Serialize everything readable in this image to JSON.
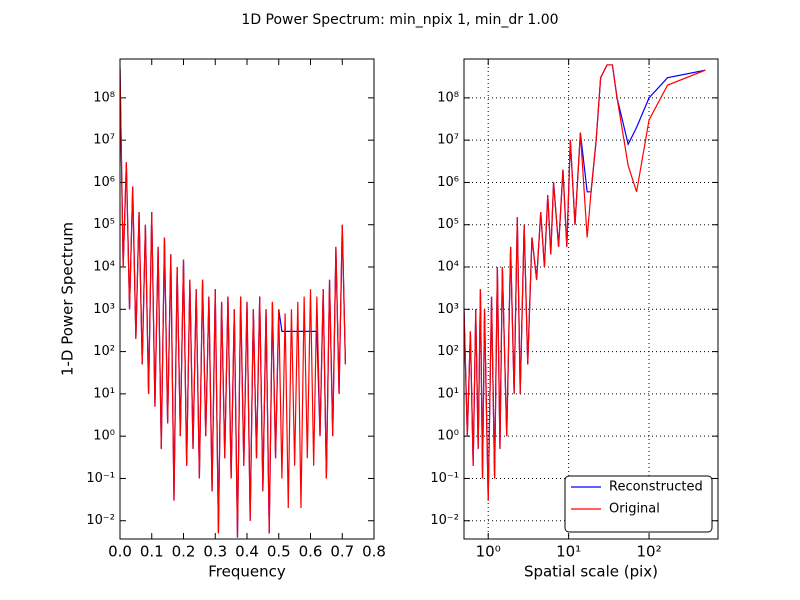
{
  "title": "1D Power Spectrum: min_npix 1, min_dr 1.00",
  "chart_data": [
    {
      "type": "line",
      "xlabel": "Frequency",
      "ylabel": "1-D Power Spectrum",
      "xscale": "linear",
      "yscale": "log",
      "grid": false,
      "xlim": [
        0,
        0.8
      ],
      "ylim": [
        0.0037,
        830000000
      ],
      "xticks": [
        {
          "value": 0,
          "label": "0.0"
        },
        0.1,
        0.2,
        0.3,
        0.4,
        0.5,
        0.6,
        0.7,
        0.8
      ],
      "yticks": [
        {
          "value": 0.01,
          "label": "10⁻²"
        },
        {
          "value": 0.1,
          "label": "10⁻¹"
        },
        {
          "value": 1,
          "label": "10⁰"
        },
        {
          "value": 10,
          "label": "10¹"
        },
        {
          "value": 100,
          "label": "10²"
        },
        {
          "value": 1000,
          "label": "10³"
        },
        {
          "value": 10000,
          "label": "10⁴"
        },
        {
          "value": 100000,
          "label": "10⁵"
        },
        {
          "value": 1000000,
          "label": "10⁶"
        },
        {
          "value": 10000000,
          "label": "10⁷"
        },
        {
          "value": 100000000,
          "label": "10⁸"
        }
      ],
      "x": [
        0.0,
        0.01,
        0.02,
        0.03,
        0.04,
        0.05,
        0.06,
        0.07,
        0.08,
        0.09,
        0.1,
        0.11,
        0.12,
        0.13,
        0.14,
        0.15,
        0.16,
        0.17,
        0.18,
        0.19,
        0.2,
        0.21,
        0.22,
        0.23,
        0.24,
        0.25,
        0.26,
        0.27,
        0.28,
        0.29,
        0.3,
        0.31,
        0.32,
        0.33,
        0.34,
        0.35,
        0.36,
        0.37,
        0.38,
        0.39,
        0.4,
        0.41,
        0.42,
        0.43,
        0.44,
        0.45,
        0.46,
        0.47,
        0.48,
        0.49,
        0.5,
        0.51,
        0.52,
        0.53,
        0.54,
        0.55,
        0.56,
        0.57,
        0.58,
        0.59,
        0.6,
        0.61,
        0.62,
        0.63,
        0.64,
        0.65,
        0.66,
        0.67,
        0.68,
        0.69,
        0.7,
        0.71
      ],
      "series": [
        {
          "name": "Reconstructed",
          "color": "#0000ff",
          "values": [
            500000000.0,
            10000.0,
            3000000.0,
            1000.0,
            800000.0,
            200,
            200000.0,
            50,
            100000.0,
            10,
            200000.0,
            5,
            30000.0,
            0.5,
            50000.0,
            2,
            20000.0,
            0.03,
            10000.0,
            1,
            15000.0,
            0.2,
            5000.0,
            0.5,
            3000.0,
            0.1,
            5000.0,
            1,
            2000.0,
            0.05,
            3000.0,
            0.005,
            1500.0,
            0.3,
            2000.0,
            0.1,
            1000.0,
            0.004,
            2000.0,
            0.2,
            1500.0,
            0.01,
            1000.0,
            0.3,
            2000.0,
            0.05,
            1000.0,
            0.005,
            1500.0,
            0.3,
            1000.0,
            300,
            300,
            300,
            300,
            300,
            300,
            300,
            300,
            300,
            300,
            300,
            300,
            1,
            3000.0,
            0.1,
            5000.0,
            1,
            30000.0,
            10,
            100000.0,
            50
          ]
        },
        {
          "name": "Original",
          "color": "#ff0000",
          "values": [
            500000000.0,
            10000.0,
            3000000.0,
            1000.0,
            800000.0,
            200,
            200000.0,
            50,
            100000.0,
            10,
            200000.0,
            5,
            30000.0,
            0.5,
            50000.0,
            2,
            20000.0,
            0.03,
            10000.0,
            1,
            15000.0,
            0.2,
            5000.0,
            0.5,
            3000.0,
            0.1,
            5000.0,
            1,
            2000.0,
            0.05,
            3000.0,
            0.005,
            1500.0,
            0.3,
            2000.0,
            0.1,
            1000.0,
            0.004,
            2000.0,
            0.2,
            1500.0,
            0.01,
            1000.0,
            0.3,
            2000.0,
            0.05,
            1000.0,
            0.005,
            1500.0,
            0.3,
            1000.0,
            0.1,
            800,
            0.02,
            1000.0,
            0.2,
            1500.0,
            0.02,
            2000.0,
            0.3,
            3000.0,
            0.2,
            2000.0,
            1,
            3000.0,
            0.1,
            5000.0,
            1,
            30000.0,
            10,
            100000.0,
            50
          ]
        }
      ]
    },
    {
      "type": "line",
      "xlabel": "Spatial scale (pix)",
      "xscale": "log",
      "yscale": "log",
      "grid": true,
      "legend": "lower right",
      "xlim": [
        0.5,
        720
      ],
      "ylim": [
        0.0037,
        830000000
      ],
      "xticks": [
        {
          "value": 1,
          "label": "10⁰"
        },
        {
          "value": 10,
          "label": "10¹"
        },
        {
          "value": 100,
          "label": "10²"
        }
      ],
      "yticks": [
        {
          "value": 0.01,
          "label": "10⁻²"
        },
        {
          "value": 0.1,
          "label": "10⁻¹"
        },
        {
          "value": 1,
          "label": "10⁰"
        },
        {
          "value": 10,
          "label": "10¹"
        },
        {
          "value": 100,
          "label": "10²"
        },
        {
          "value": 1000,
          "label": "10³"
        },
        {
          "value": 10000,
          "label": "10⁴"
        },
        {
          "value": 100000,
          "label": "10⁵"
        },
        {
          "value": 1000000,
          "label": "10⁶"
        },
        {
          "value": 10000000,
          "label": "10⁷"
        },
        {
          "value": 100000000,
          "label": "10⁸"
        }
      ],
      "x": [
        0.5,
        0.55,
        0.6,
        0.65,
        0.7,
        0.75,
        0.8,
        0.85,
        0.9,
        1.0,
        1.1,
        1.2,
        1.3,
        1.4,
        1.5,
        1.7,
        1.9,
        2.1,
        2.3,
        2.5,
        2.8,
        3.1,
        3.5,
        4,
        4.5,
        5,
        5.5,
        6,
        6.5,
        7.5,
        8.5,
        9.5,
        10.5,
        12,
        14,
        17,
        19,
        22,
        25,
        30,
        35,
        40,
        55,
        70,
        100,
        170,
        500
      ],
      "series": [
        {
          "name": "Reconstructed",
          "color": "#0000ff",
          "values": [
            1000.0,
            1,
            300,
            0.2,
            1000.0,
            0.5,
            3000.0,
            0.1,
            1000.0,
            0.03,
            2000.0,
            0.1,
            10000.0,
            0.5,
            10000.0,
            1,
            30000.0,
            10,
            150000.0,
            10,
            100000.0,
            50,
            50000.0,
            5000.0,
            200000.0,
            10000.0,
            500000.0,
            20000.0,
            1000000.0,
            30000.0,
            2000000.0,
            30000.0,
            10000000.0,
            100000.0,
            15000000.0,
            600000.0,
            600000.0,
            10000000.0,
            300000000.0,
            600000000.0,
            600000000.0,
            100000000.0,
            8000000.0,
            20000000.0,
            100000000.0,
            300000000.0,
            450000000.0
          ]
        },
        {
          "name": "Original",
          "color": "#ff0000",
          "values": [
            1000.0,
            1,
            300,
            0.2,
            1000.0,
            0.5,
            3000.0,
            0.1,
            1000.0,
            0.03,
            2000.0,
            0.1,
            10000.0,
            0.5,
            10000.0,
            1,
            30000.0,
            10,
            150000.0,
            10,
            100000.0,
            50,
            50000.0,
            5000.0,
            200000.0,
            10000.0,
            500000.0,
            20000.0,
            1000000.0,
            30000.0,
            2000000.0,
            30000.0,
            10000000.0,
            100000.0,
            15000000.0,
            50000.0,
            600000.0,
            10000000.0,
            300000000.0,
            600000000.0,
            600000000.0,
            100000000.0,
            2500000.0,
            600000.0,
            30000000.0,
            200000000.0,
            450000000.0
          ]
        }
      ]
    }
  ]
}
